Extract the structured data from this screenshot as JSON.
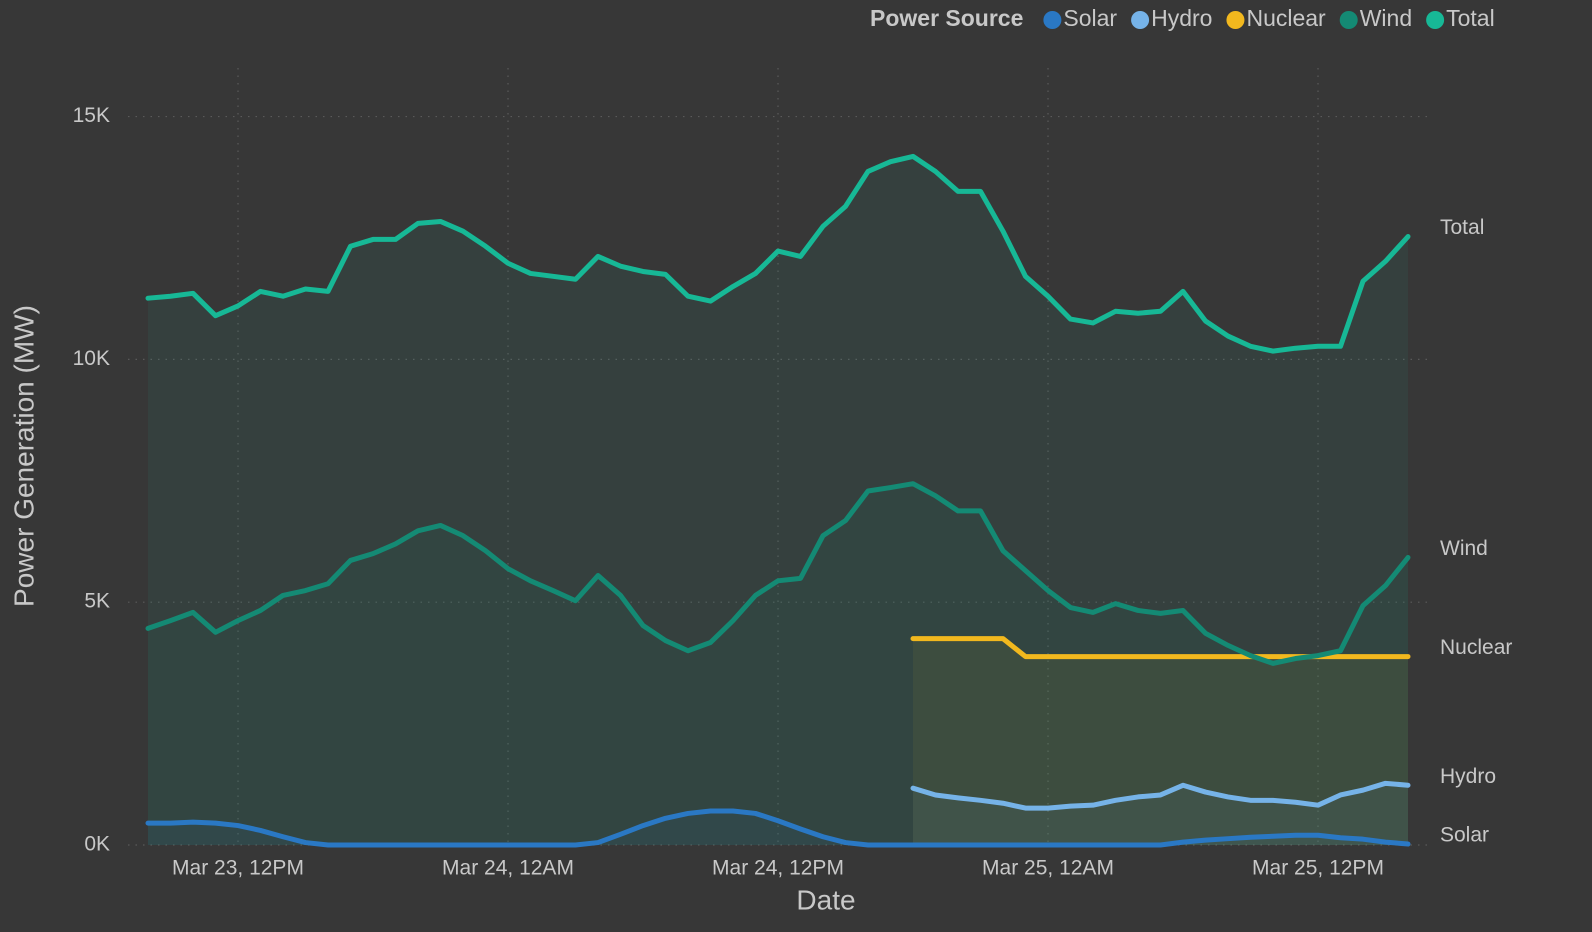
{
  "chart_data": {
    "type": "line",
    "legend_title": "Power Source",
    "x_label": "Date",
    "y_label": "Power Generation (MW)",
    "legend": "top-right",
    "grid": true,
    "x": [
      "Mar 23, 8AM",
      "Mar 23, 9AM",
      "Mar 23, 10AM",
      "Mar 23, 11AM",
      "Mar 23, 12PM",
      "Mar 23, 1PM",
      "Mar 23, 2PM",
      "Mar 23, 3PM",
      "Mar 23, 4PM",
      "Mar 23, 5PM",
      "Mar 23, 6PM",
      "Mar 23, 7PM",
      "Mar 23, 8PM",
      "Mar 23, 9PM",
      "Mar 23, 10PM",
      "Mar 23, 11PM",
      "Mar 24, 12AM",
      "Mar 24, 1AM",
      "Mar 24, 2AM",
      "Mar 24, 3AM",
      "Mar 24, 4AM",
      "Mar 24, 5AM",
      "Mar 24, 6AM",
      "Mar 24, 7AM",
      "Mar 24, 8AM",
      "Mar 24, 9AM",
      "Mar 24, 10AM",
      "Mar 24, 11AM",
      "Mar 24, 12PM",
      "Mar 24, 1PM",
      "Mar 24, 2PM",
      "Mar 24, 3PM",
      "Mar 24, 4PM",
      "Mar 24, 5PM",
      "Mar 24, 6PM",
      "Mar 24, 7PM",
      "Mar 24, 8PM",
      "Mar 24, 9PM",
      "Mar 24, 10PM",
      "Mar 24, 11PM",
      "Mar 25, 12AM",
      "Mar 25, 1AM",
      "Mar 25, 2AM",
      "Mar 25, 3AM",
      "Mar 25, 4AM",
      "Mar 25, 5AM",
      "Mar 25, 6AM",
      "Mar 25, 7AM",
      "Mar 25, 8AM",
      "Mar 25, 9AM",
      "Mar 25, 10AM",
      "Mar 25, 11AM",
      "Mar 25, 12PM",
      "Mar 25, 1PM",
      "Mar 25, 2PM",
      "Mar 25, 3PM",
      "Mar 25, 4PM"
    ],
    "xticks": [
      "Mar 23, 12PM",
      "Mar 24, 12AM",
      "Mar 24, 12PM",
      "Mar 25, 12AM",
      "Mar 25, 12PM"
    ],
    "ylim": [
      0,
      16000
    ],
    "yticks": [
      {
        "value": 0,
        "label": "0K"
      },
      {
        "value": 5000,
        "label": "5K"
      },
      {
        "value": 10000,
        "label": "10K"
      },
      {
        "value": 15000,
        "label": "15K"
      }
    ],
    "series": [
      {
        "name": "Solar",
        "color": "#2a78c4",
        "values": [
          450,
          450,
          470,
          450,
          400,
          300,
          170,
          50,
          0,
          0,
          0,
          0,
          0,
          0,
          0,
          0,
          0,
          0,
          0,
          0,
          50,
          220,
          400,
          550,
          650,
          700,
          700,
          650,
          500,
          330,
          170,
          50,
          0,
          0,
          0,
          0,
          0,
          0,
          0,
          0,
          0,
          0,
          0,
          0,
          0,
          0,
          60,
          100,
          130,
          160,
          180,
          200,
          200,
          150,
          120,
          60,
          20
        ]
      },
      {
        "name": "Hydro",
        "color": "#76b3e8",
        "values": [
          null,
          null,
          null,
          null,
          null,
          null,
          null,
          null,
          null,
          null,
          null,
          null,
          null,
          null,
          null,
          null,
          null,
          null,
          null,
          null,
          null,
          null,
          null,
          null,
          null,
          null,
          null,
          null,
          null,
          null,
          null,
          null,
          null,
          null,
          1170,
          1030,
          970,
          920,
          860,
          760,
          760,
          800,
          820,
          920,
          990,
          1030,
          1230,
          1090,
          990,
          920,
          920,
          880,
          820,
          1030,
          1130,
          1270,
          1230
        ]
      },
      {
        "name": "Nuclear",
        "color": "#f2b81e",
        "values": [
          null,
          null,
          null,
          null,
          null,
          null,
          null,
          null,
          null,
          null,
          null,
          null,
          null,
          null,
          null,
          null,
          null,
          null,
          null,
          null,
          null,
          null,
          null,
          null,
          null,
          null,
          null,
          null,
          null,
          null,
          null,
          null,
          null,
          null,
          4250,
          4250,
          4250,
          4250,
          4250,
          3880,
          3880,
          3880,
          3880,
          3880,
          3880,
          3880,
          3880,
          3880,
          3880,
          3880,
          3880,
          3880,
          3880,
          3880,
          3880,
          3880,
          3880
        ]
      },
      {
        "name": "Wind",
        "color": "#148a74",
        "values": [
          4460,
          4620,
          4790,
          4380,
          4620,
          4830,
          5140,
          5240,
          5380,
          5860,
          6000,
          6200,
          6470,
          6580,
          6370,
          6060,
          5690,
          5440,
          5240,
          5030,
          5550,
          5140,
          4520,
          4210,
          4000,
          4170,
          4620,
          5140,
          5440,
          5490,
          6370,
          6680,
          7290,
          7360,
          7440,
          7190,
          6880,
          6880,
          6060,
          5650,
          5240,
          4890,
          4790,
          4970,
          4830,
          4770,
          4830,
          4360,
          4110,
          3900,
          3740,
          3840,
          3900,
          4000,
          4930,
          5340,
          5920
        ]
      },
      {
        "name": "Total",
        "color": "#17b896",
        "values": [
          11260,
          11300,
          11360,
          10900,
          11100,
          11400,
          11300,
          11450,
          11400,
          12330,
          12470,
          12470,
          12800,
          12840,
          12640,
          12330,
          11980,
          11770,
          11710,
          11650,
          12120,
          11920,
          11810,
          11750,
          11300,
          11200,
          11500,
          11770,
          12230,
          12120,
          12740,
          13150,
          13870,
          14070,
          14180,
          13870,
          13460,
          13460,
          12640,
          11710,
          11300,
          10830,
          10750,
          10990,
          10950,
          10990,
          11400,
          10790,
          10480,
          10270,
          10170,
          10230,
          10270,
          10270,
          11610,
          12020,
          12530
        ]
      }
    ]
  }
}
